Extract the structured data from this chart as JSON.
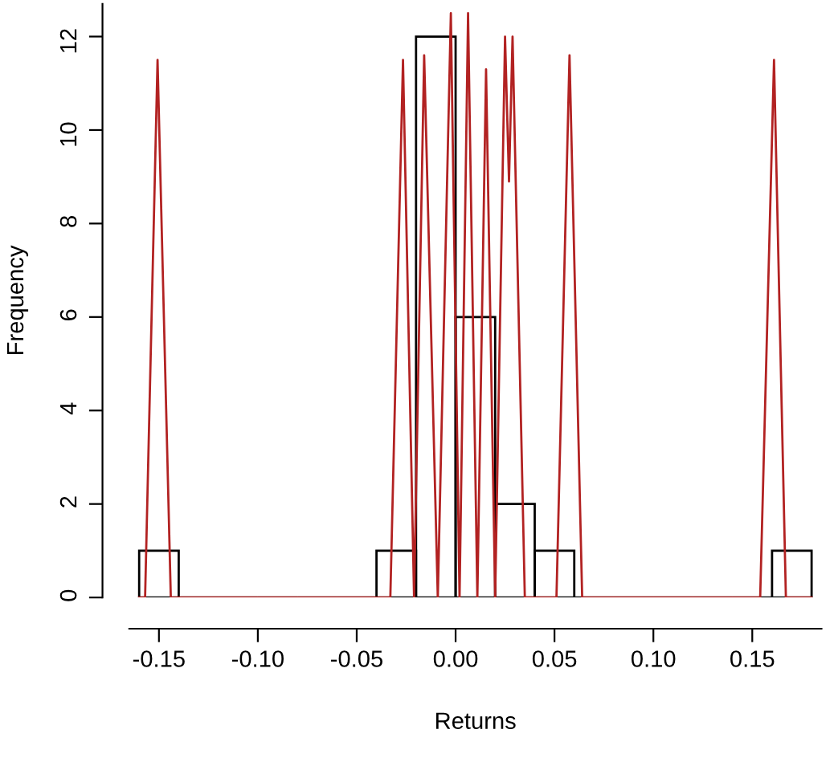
{
  "chart_data": {
    "type": "histogram",
    "xlabel": "Returns",
    "ylabel": "Frequency",
    "bins": [
      -0.16,
      -0.14,
      -0.12,
      -0.1,
      -0.08,
      -0.06,
      -0.04,
      -0.02,
      0,
      0.02,
      0.04,
      0.06,
      0.08,
      0.1,
      0.12,
      0.14,
      0.16,
      0.18
    ],
    "values": [
      1,
      0,
      0,
      0,
      0,
      0,
      1,
      12,
      6,
      2,
      1,
      0,
      0,
      0,
      0,
      0,
      1
    ],
    "color": "#000000",
    "series": [
      {
        "type": "line",
        "color": "#b22222",
        "x": [
          -0.16,
          -0.157,
          -0.1507,
          -0.144,
          -0.033,
          -0.0266,
          -0.021,
          -0.0159,
          -0.009,
          -0.0024,
          0.002,
          0.0063,
          0.011,
          0.0154,
          0.02,
          0.025,
          0.027,
          0.0288,
          0.035,
          0.051,
          0.0576,
          0.064,
          0.154,
          0.161,
          0.167,
          0.18
        ],
        "values": [
          0,
          0,
          11.5,
          0,
          0,
          11.5,
          0,
          11.6,
          0,
          12.5,
          0,
          12.5,
          0,
          11.3,
          0,
          12.0,
          8.9,
          12.0,
          0,
          0,
          11.6,
          0,
          0,
          11.5,
          0,
          0
        ]
      }
    ],
    "xlim": [
      -0.165,
      0.185
    ],
    "ylim": [
      0,
      12.7
    ],
    "xticks": [
      {
        "value": -0.15,
        "label": "-0.15"
      },
      {
        "value": -0.1,
        "label": "-0.10"
      },
      {
        "value": -0.05,
        "label": "-0.05"
      },
      {
        "value": 0,
        "label": "0.00"
      },
      {
        "value": 0.05,
        "label": "0.05"
      },
      {
        "value": 0.1,
        "label": "0.10"
      },
      {
        "value": 0.15,
        "label": "0.15"
      }
    ],
    "yticks": [
      0,
      2,
      4,
      6,
      8,
      10,
      12
    ],
    "grid": false,
    "legend": false
  }
}
